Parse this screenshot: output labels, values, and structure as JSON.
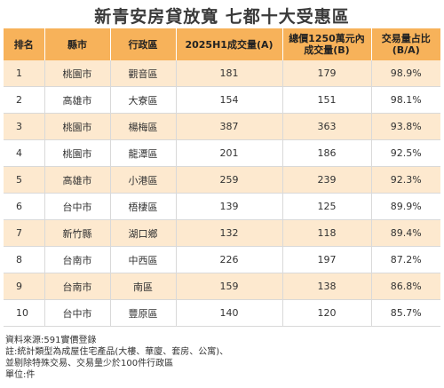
{
  "title": "新青安房貸放寬 七都十大受惠區",
  "table": {
    "headers": [
      "排名",
      "縣市",
      "行政區",
      "2025H1成交量(A)",
      "總價1250萬元內成交量(B)",
      "交易量占比(B/A)"
    ],
    "rows": [
      {
        "rank": "1",
        "city": "桃園市",
        "district": "觀音區",
        "total": "181",
        "under": "179",
        "ratio": "98.9%"
      },
      {
        "rank": "2",
        "city": "高雄市",
        "district": "大寮區",
        "total": "154",
        "under": "151",
        "ratio": "98.1%"
      },
      {
        "rank": "3",
        "city": "桃園市",
        "district": "楊梅區",
        "total": "387",
        "under": "363",
        "ratio": "93.8%"
      },
      {
        "rank": "4",
        "city": "桃園市",
        "district": "龍潭區",
        "total": "201",
        "under": "186",
        "ratio": "92.5%"
      },
      {
        "rank": "5",
        "city": "高雄市",
        "district": "小港區",
        "total": "259",
        "under": "239",
        "ratio": "92.3%"
      },
      {
        "rank": "6",
        "city": "台中市",
        "district": "梧棲區",
        "total": "139",
        "under": "125",
        "ratio": "89.9%"
      },
      {
        "rank": "7",
        "city": "新竹縣",
        "district": "湖口鄉",
        "total": "132",
        "under": "118",
        "ratio": "89.4%"
      },
      {
        "rank": "8",
        "city": "台南市",
        "district": "中西區",
        "total": "226",
        "under": "197",
        "ratio": "87.2%"
      },
      {
        "rank": "9",
        "city": "台南市",
        "district": "南區",
        "total": "159",
        "under": "138",
        "ratio": "86.8%"
      },
      {
        "rank": "10",
        "city": "台中市",
        "district": "豐原區",
        "total": "140",
        "under": "120",
        "ratio": "85.7%"
      }
    ]
  },
  "notes": [
    "資料來源:591實價登錄",
    "註:統計類型為成屋住宅產品(大樓、華廈、套房、公寓)、",
    "並剔除特殊交易、交易量少於100件行政區",
    "單位:件"
  ],
  "colors": {
    "header": "#f7b25a",
    "alt_row": "#fde9cf",
    "text": "#333333"
  }
}
